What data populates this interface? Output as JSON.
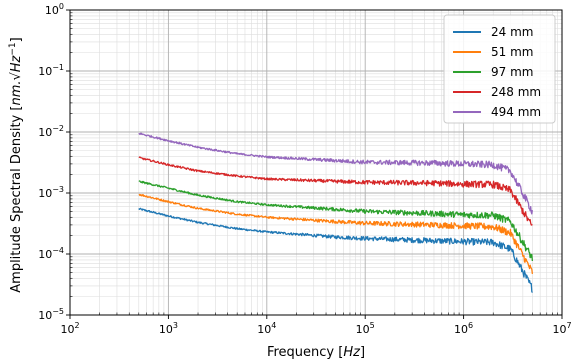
{
  "chart_data": {
    "type": "line",
    "xscale": "log",
    "yscale": "log",
    "xlim": [
      100,
      10000000
    ],
    "ylim": [
      1e-05,
      1
    ],
    "grid": true,
    "legend_position": "top-right",
    "xlabel": "Frequency [Hz]",
    "ylabel": "Amplitude Spectral Density [nm.√Hz⁻¹]",
    "x_ticks": [
      {
        "value": 100,
        "base": "10",
        "exp": "2"
      },
      {
        "value": 1000,
        "base": "10",
        "exp": "3"
      },
      {
        "value": 10000,
        "base": "10",
        "exp": "4"
      },
      {
        "value": 100000,
        "base": "10",
        "exp": "5"
      },
      {
        "value": 1000000,
        "base": "10",
        "exp": "6"
      },
      {
        "value": 10000000,
        "base": "10",
        "exp": "7"
      }
    ],
    "y_ticks": [
      {
        "value": 1e-05,
        "base": "10",
        "exp": "−5"
      },
      {
        "value": 0.0001,
        "base": "10",
        "exp": "−4"
      },
      {
        "value": 0.001,
        "base": "10",
        "exp": "−3"
      },
      {
        "value": 0.01,
        "base": "10",
        "exp": "−2"
      },
      {
        "value": 0.1,
        "base": "10",
        "exp": "−1"
      },
      {
        "value": 1,
        "base": "10",
        "exp": "0"
      }
    ],
    "x": [
      500,
      1000,
      2000,
      5000,
      10000,
      50000,
      100000,
      500000,
      1000000,
      2000000,
      3000000,
      5000000
    ],
    "series": [
      {
        "name": "24 mm",
        "color": "#1f77b4",
        "values": [
          0.00055,
          0.00042,
          0.00033,
          0.00026,
          0.00023,
          0.00019,
          0.00018,
          0.000165,
          0.00016,
          0.000155,
          0.00012,
          2.7e-05
        ]
      },
      {
        "name": "51 mm",
        "color": "#ff7f0e",
        "values": [
          0.00095,
          0.00072,
          0.00056,
          0.00045,
          0.0004,
          0.00034,
          0.00032,
          0.0003,
          0.00029,
          0.00028,
          0.00022,
          5e-05
        ]
      },
      {
        "name": "97 mm",
        "color": "#2ca02c",
        "values": [
          0.00155,
          0.0012,
          0.00092,
          0.00072,
          0.00064,
          0.00054,
          0.0005,
          0.00046,
          0.00044,
          0.00043,
          0.00034,
          8.5e-05
        ]
      },
      {
        "name": "248 mm",
        "color": "#d62728",
        "values": [
          0.0038,
          0.0029,
          0.0023,
          0.0019,
          0.0017,
          0.00155,
          0.0015,
          0.00145,
          0.0014,
          0.00138,
          0.0011,
          0.00028
        ]
      },
      {
        "name": "494 mm",
        "color": "#9467bd",
        "values": [
          0.0095,
          0.0072,
          0.0056,
          0.0044,
          0.0039,
          0.0034,
          0.0032,
          0.0031,
          0.003,
          0.0029,
          0.0023,
          0.0005
        ]
      }
    ]
  }
}
